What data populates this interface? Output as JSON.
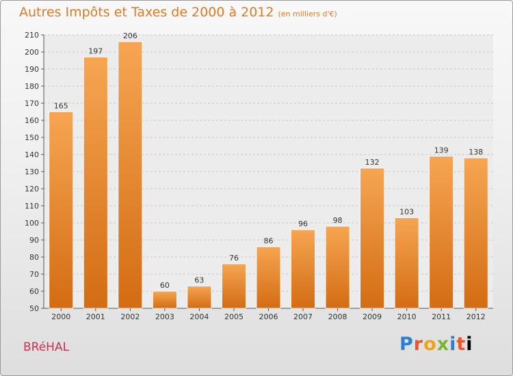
{
  "header": {
    "title": "Autres Impôts et Taxes de 2000 à 2012",
    "subtitle": "(en milliers d'€)"
  },
  "commune": "BRéHAL",
  "logo": {
    "letters": [
      "P",
      "r",
      "o",
      "x",
      "i",
      "t",
      "i"
    ]
  },
  "colors": {
    "bar_top": "#f6a552",
    "bar_bottom": "#d36c13",
    "title": "#e07a25",
    "commune": "#c9314f"
  },
  "chart_data": {
    "type": "bar",
    "title": "Autres Impôts et Taxes de 2000 à 2012",
    "subtitle": "(en milliers d'€)",
    "categories": [
      "2000",
      "2001",
      "2002",
      "2003",
      "2004",
      "2005",
      "2006",
      "2007",
      "2008",
      "2009",
      "2010",
      "2011",
      "2012"
    ],
    "values": [
      165,
      197,
      206,
      60,
      63,
      76,
      86,
      96,
      98,
      132,
      103,
      139,
      138
    ],
    "ylim": [
      50,
      210
    ],
    "yticks": [
      50,
      60,
      70,
      80,
      90,
      100,
      110,
      120,
      130,
      140,
      150,
      160,
      170,
      180,
      190,
      200,
      210
    ],
    "grid": true
  }
}
